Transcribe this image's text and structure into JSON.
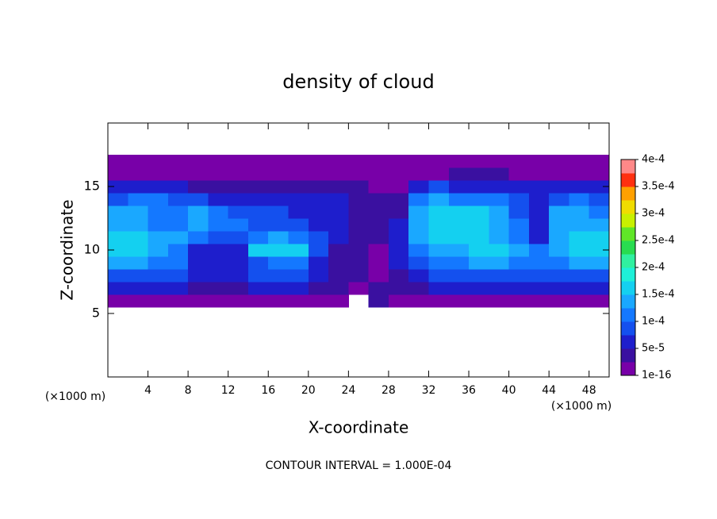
{
  "chart_data": {
    "type": "contour",
    "title": "density of cloud",
    "x_label": "X-coordinate",
    "y_label": "Z-coordinate",
    "x_unit_label": "(×1000 m)",
    "y_unit_label": "(×1000 m)",
    "footer": "CONTOUR INTERVAL = 1.000E-04",
    "xlim": [
      0,
      50
    ],
    "ylim": [
      0,
      20
    ],
    "xticks": [
      4,
      8,
      12,
      16,
      20,
      24,
      28,
      32,
      36,
      40,
      44,
      48
    ],
    "yticks": [
      5,
      10,
      15
    ],
    "x": [
      1,
      3,
      5,
      7,
      9,
      11,
      13,
      15,
      17,
      19,
      21,
      23,
      25,
      27,
      29,
      31,
      33,
      35,
      37,
      39,
      41,
      43,
      45,
      47,
      49
    ],
    "y": [
      6,
      7,
      8,
      9,
      10,
      11,
      12,
      13,
      14,
      15,
      16,
      17
    ],
    "z": [
      [
        2e-05,
        2e-05,
        2e-05,
        2e-05,
        2e-05,
        2e-05,
        2e-05,
        2e-05,
        2e-05,
        2e-05,
        2e-05,
        2e-05,
        null,
        3e-05,
        2e-05,
        2e-05,
        2e-05,
        2e-05,
        2e-05,
        2e-05,
        2e-05,
        2e-05,
        2e-05,
        2e-05,
        2e-05
      ],
      [
        5e-05,
        5e-05,
        5e-05,
        5e-05,
        4e-05,
        4e-05,
        4e-05,
        5e-05,
        5e-05,
        5e-05,
        4e-05,
        3e-05,
        2e-05,
        3e-05,
        3e-05,
        4e-05,
        5e-05,
        5e-05,
        5e-05,
        5e-05,
        5e-05,
        5e-05,
        5e-05,
        5e-05,
        5e-05
      ],
      [
        8e-05,
        8e-05,
        8e-05,
        8e-05,
        6e-05,
        5e-05,
        5e-05,
        8e-05,
        8e-05,
        8e-05,
        6e-05,
        4e-05,
        3e-05,
        2e-05,
        4e-05,
        6e-05,
        8e-05,
        8e-05,
        8e-05,
        8e-05,
        8e-05,
        8e-05,
        8e-05,
        8e-05,
        8e-05
      ],
      [
        0.00013,
        0.00013,
        0.00012,
        0.0001,
        7e-05,
        5e-05,
        5e-05,
        9e-05,
        0.0001,
        0.0001,
        7e-05,
        4e-05,
        3e-05,
        2e-05,
        5e-05,
        8e-05,
        0.00011,
        0.00012,
        0.00013,
        0.00013,
        0.00012,
        0.0001,
        0.00012,
        0.00013,
        0.00013
      ],
      [
        0.00015,
        0.00016,
        0.00014,
        0.0001,
        7e-05,
        6e-05,
        6e-05,
        0.00015,
        0.00016,
        0.00016,
        9e-05,
        4e-05,
        3e-05,
        2e-05,
        6e-05,
        0.00011,
        0.00014,
        0.00014,
        0.00015,
        0.00015,
        0.00014,
        0.00011,
        0.00013,
        0.00015,
        0.00015
      ],
      [
        0.00015,
        0.00015,
        0.00013,
        0.00013,
        0.00011,
        8e-05,
        9e-05,
        0.00012,
        0.00013,
        0.00012,
        8e-05,
        5e-05,
        4e-05,
        3e-05,
        7e-05,
        0.00013,
        0.00015,
        0.00015,
        0.00015,
        0.00014,
        0.00012,
        7e-05,
        0.00013,
        0.00015,
        0.00015
      ],
      [
        0.00014,
        0.00014,
        0.00012,
        0.00012,
        0.00013,
        0.00012,
        0.0001,
        9e-05,
        9e-05,
        9e-05,
        7e-05,
        6e-05,
        4e-05,
        3e-05,
        5e-05,
        0.00014,
        0.00015,
        0.00016,
        0.00015,
        0.00014,
        0.0001,
        6e-05,
        0.00013,
        0.00014,
        0.00014
      ],
      [
        0.00013,
        0.00014,
        0.00012,
        0.0001,
        0.00013,
        0.0001,
        8e-05,
        8e-05,
        8e-05,
        7e-05,
        5e-05,
        5e-05,
        4e-05,
        3e-05,
        4e-05,
        0.00013,
        0.00015,
        0.00015,
        0.00015,
        0.00014,
        9e-05,
        6e-05,
        0.00013,
        0.00014,
        0.00012
      ],
      [
        9e-05,
        0.0001,
        0.00012,
        9e-05,
        9e-05,
        7e-05,
        6e-05,
        6e-05,
        6e-05,
        6e-05,
        5e-05,
        5e-05,
        4e-05,
        3e-05,
        3e-05,
        0.0001,
        0.00013,
        0.00012,
        0.00012,
        0.00011,
        8e-05,
        6e-05,
        9e-05,
        0.0001,
        8e-05
      ],
      [
        5e-05,
        6e-05,
        6e-05,
        5e-05,
        4e-05,
        4e-05,
        4e-05,
        4e-05,
        4e-05,
        4e-05,
        4e-05,
        3e-05,
        3e-05,
        2e-05,
        2e-05,
        5e-05,
        8e-05,
        6e-05,
        6e-05,
        5e-05,
        5e-05,
        6e-05,
        6e-05,
        5e-05,
        5e-05
      ],
      [
        2e-05,
        2e-05,
        2e-05,
        2e-05,
        2e-05,
        2e-05,
        2e-05,
        2e-05,
        2e-05,
        2e-05,
        2e-05,
        2e-05,
        2e-05,
        2e-05,
        1e-05,
        1e-05,
        2e-05,
        3e-05,
        3e-05,
        3e-05,
        2e-05,
        2e-05,
        2e-05,
        2e-05,
        2e-05
      ],
      [
        1e-05,
        1e-05,
        1e-05,
        1e-05,
        1e-05,
        1e-05,
        1e-05,
        1e-05,
        1e-05,
        1e-05,
        1e-05,
        1e-05,
        1e-05,
        1e-05,
        1e-05,
        1e-05,
        1e-05,
        1e-05,
        1e-05,
        1e-05,
        1e-05,
        1e-05,
        1e-05,
        1e-05,
        1e-05
      ]
    ],
    "levels": [
      1e-16,
      2.5e-05,
      5e-05,
      7.5e-05,
      0.0001,
      0.000125,
      0.00015,
      0.000175,
      0.0002,
      0.000225,
      0.00025,
      0.000275,
      0.0003,
      0.000325,
      0.00035,
      0.000375,
      0.0004
    ],
    "colors": [
      "#7800a8",
      "#3a10a0",
      "#1e1ecc",
      "#1450ee",
      "#1478ff",
      "#1aa8ff",
      "#14d0f0",
      "#1ef0d8",
      "#30f0a0",
      "#28dc50",
      "#60e628",
      "#c8f000",
      "#f0dc00",
      "#ffa000",
      "#ff3010",
      "#ff8888"
    ],
    "colorbar_ticks": [
      {
        "value": 1e-16,
        "label": "1e-16"
      },
      {
        "value": 5e-05,
        "label": "5e-5"
      },
      {
        "value": 0.0001,
        "label": "1e-4"
      },
      {
        "value": 0.00015,
        "label": "1.5e-4"
      },
      {
        "value": 0.0002,
        "label": "2e-4"
      },
      {
        "value": 0.00025,
        "label": "2.5e-4"
      },
      {
        "value": 0.0003,
        "label": "3e-4"
      },
      {
        "value": 0.00035,
        "label": "3.5e-4"
      },
      {
        "value": 0.0004,
        "label": "4e-4"
      }
    ]
  }
}
